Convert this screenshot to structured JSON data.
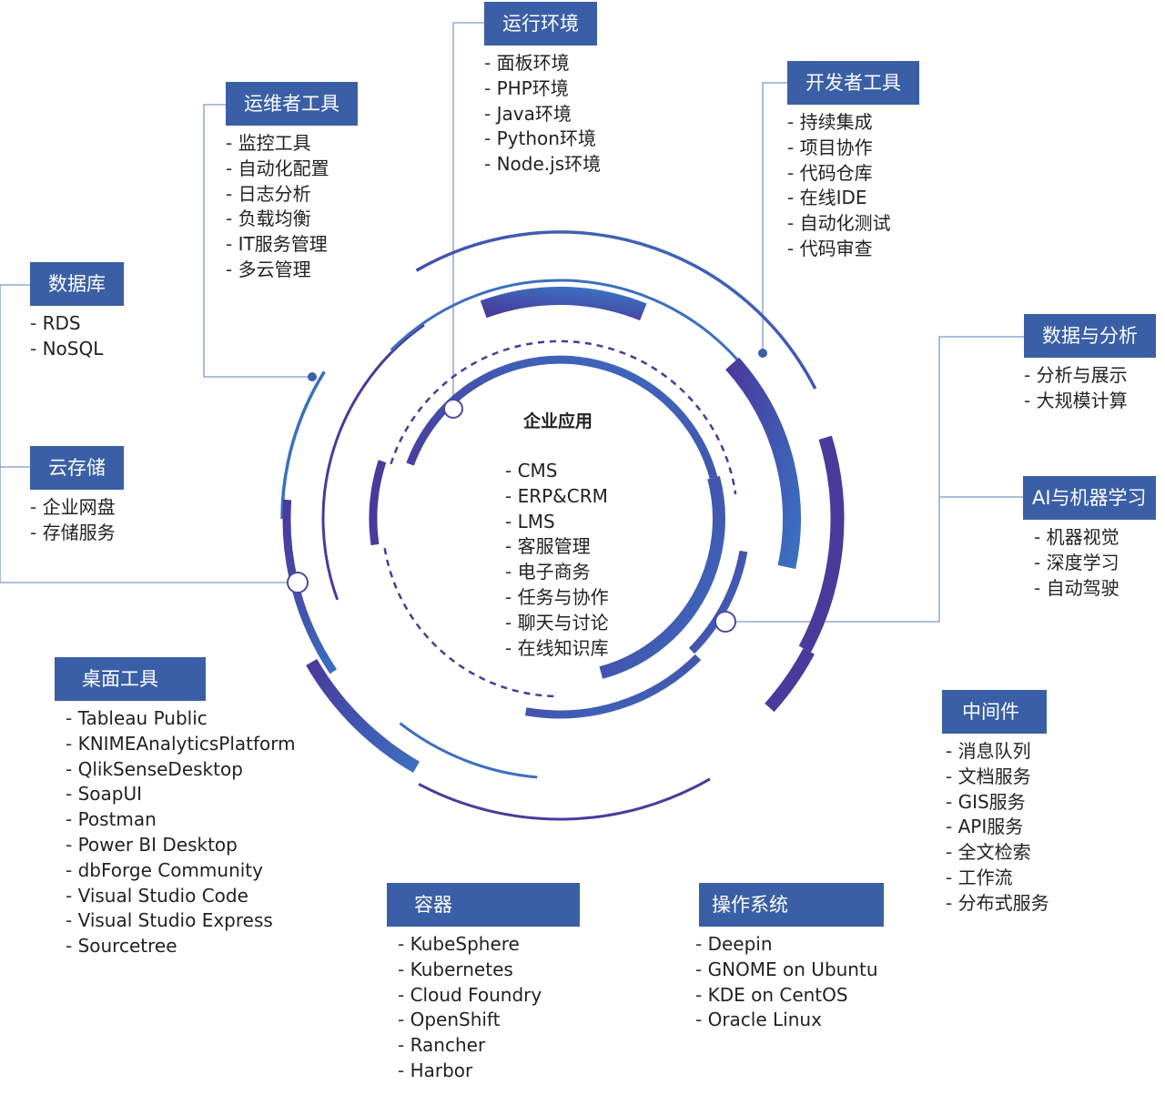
{
  "theme": {
    "header_bg": "#3a5fa6",
    "ring_blue": "#3b6fc0",
    "ring_purple": "#4a3a9c",
    "connector": "#7f97c8"
  },
  "center": {
    "title": "企业应用",
    "items": [
      "CMS",
      "ERP&CRM",
      "LMS",
      "客服管理",
      "电子商务",
      "任务与协作",
      "聊天与讨论",
      "在线知识库"
    ]
  },
  "categories": [
    {
      "key": "runtime",
      "title": "运行环境",
      "items": [
        "面板环境",
        "PHP环境",
        "Java环境",
        "Python环境",
        "Node.js环境"
      ]
    },
    {
      "key": "ops",
      "title": "运维者工具",
      "items": [
        "监控工具",
        "自动化配置",
        "日志分析",
        "负载均衡",
        "IT服务管理",
        "多云管理"
      ]
    },
    {
      "key": "dev",
      "title": "开发者工具",
      "items": [
        "持续集成",
        "项目协作",
        "代码仓库",
        "在线IDE",
        "自动化测试",
        "代码审查"
      ]
    },
    {
      "key": "db",
      "title": "数据库",
      "items": [
        "RDS",
        "NoSQL"
      ]
    },
    {
      "key": "data",
      "title": "数据与分析",
      "items": [
        "分析与展示",
        "大规模计算"
      ]
    },
    {
      "key": "storage",
      "title": "云存储",
      "items": [
        "企业网盘",
        "存储服务"
      ]
    },
    {
      "key": "ai",
      "title": "AI与机器学习",
      "items": [
        "机器视觉",
        "深度学习",
        "自动驾驶"
      ]
    },
    {
      "key": "desktop",
      "title": "桌面工具",
      "items": [
        "Tableau Public",
        "KNIMEAnalyticsPlatform",
        "QlikSenseDesktop",
        "SoapUI",
        "Postman",
        "Power BI Desktop",
        "dbForge Community",
        "Visual Studio Code",
        "Visual Studio Express",
        "Sourcetree"
      ]
    },
    {
      "key": "middleware",
      "title": "中间件",
      "items": [
        "消息队列",
        "文档服务",
        "GIS服务",
        "API服务",
        "全文检索",
        "工作流",
        "分布式服务"
      ]
    },
    {
      "key": "container",
      "title": "容器",
      "items": [
        "KubeSphere",
        "Kubernetes",
        "Cloud Foundry",
        "OpenShift",
        "Rancher",
        "Harbor"
      ]
    },
    {
      "key": "os",
      "title": "操作系统",
      "items": [
        "Deepin",
        "GNOME on Ubuntu",
        "KDE on CentOS",
        "Oracle Linux"
      ]
    }
  ]
}
